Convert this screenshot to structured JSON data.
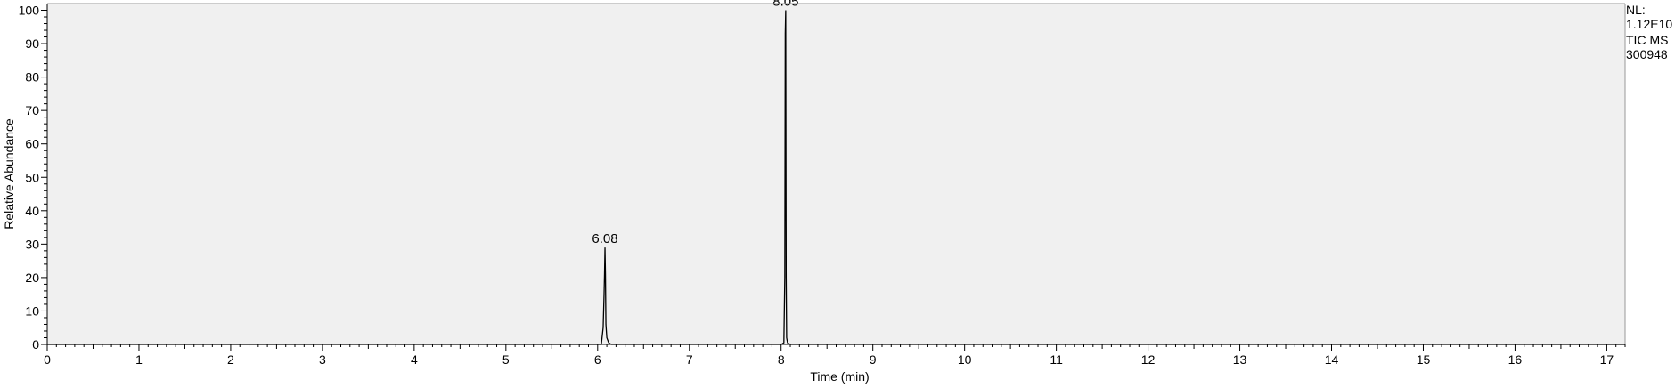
{
  "chart_data": {
    "type": "line",
    "title": "",
    "xlabel": "Time (min)",
    "ylabel": "Relative Abundance",
    "xlim": [
      0,
      17.2
    ],
    "ylim": [
      0,
      102
    ],
    "x_ticks": [
      0,
      1,
      2,
      3,
      4,
      5,
      6,
      7,
      8,
      9,
      10,
      11,
      12,
      13,
      14,
      15,
      16,
      17
    ],
    "y_ticks": [
      0,
      10,
      20,
      30,
      40,
      50,
      60,
      70,
      80,
      90,
      100
    ],
    "grid": false,
    "background": "#f0f0f0",
    "line_color": "#000000",
    "header": {
      "nl_label": "NL:",
      "nl_value": "1.12E10",
      "trace": "TIC  MS",
      "sample": "300948"
    },
    "peaks": [
      {
        "label": "6.08",
        "x": 6.08,
        "y": 29
      },
      {
        "label": "8.05",
        "x": 8.05,
        "y": 100
      }
    ],
    "series": [
      {
        "x": [
          0,
          6.04,
          6.06,
          6.07,
          6.075,
          6.08,
          6.085,
          6.09,
          6.1,
          6.12,
          6.15,
          8.0,
          8.03,
          8.04,
          8.045,
          8.05,
          8.055,
          8.06,
          8.07,
          8.1,
          17.2
        ],
        "values": [
          0,
          0,
          5,
          15,
          21,
          29,
          21,
          6,
          2,
          0.5,
          0,
          0,
          0.5,
          20,
          93,
          100,
          20,
          2,
          0.5,
          0,
          0
        ]
      }
    ]
  }
}
